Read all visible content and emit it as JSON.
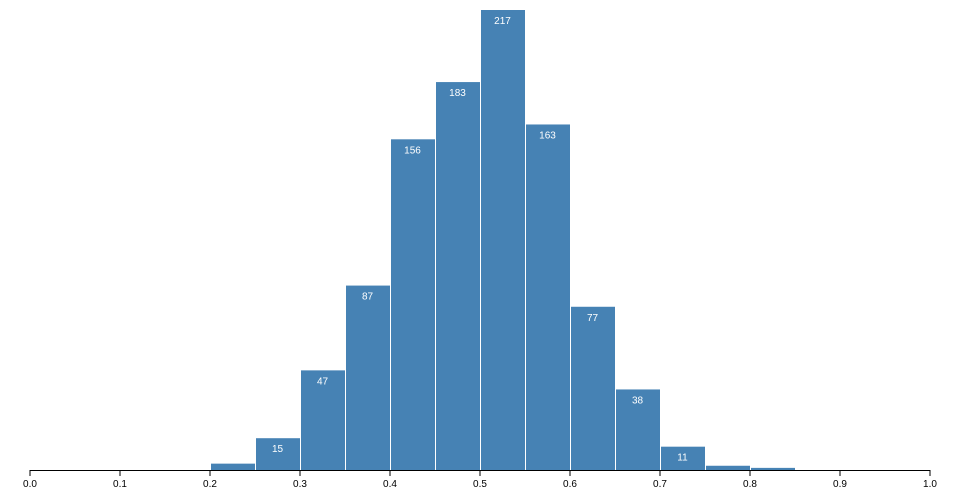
{
  "chart_data": {
    "type": "histogram",
    "bins": [
      0.2,
      0.25,
      0.3,
      0.35,
      0.4,
      0.45,
      0.5,
      0.55,
      0.6,
      0.65,
      0.7,
      0.75,
      0.8,
      0.85
    ],
    "values": [
      3,
      15,
      47,
      87,
      156,
      183,
      217,
      163,
      77,
      38,
      11,
      2,
      1
    ],
    "value_labels": [
      null,
      "15",
      "47",
      "87",
      "156",
      "183",
      "217",
      "163",
      "77",
      "38",
      "11",
      null,
      null
    ],
    "color": "#4682b4",
    "xlim": [
      0,
      1
    ],
    "xticks": [
      {
        "value": 0,
        "label": "0.0"
      },
      0.1,
      0.2,
      0.3,
      0.4,
      0.5,
      0.6,
      0.7,
      0.8,
      0.9,
      {
        "value": 1,
        "label": "1.0"
      }
    ],
    "ylim": [
      0,
      217
    ]
  }
}
